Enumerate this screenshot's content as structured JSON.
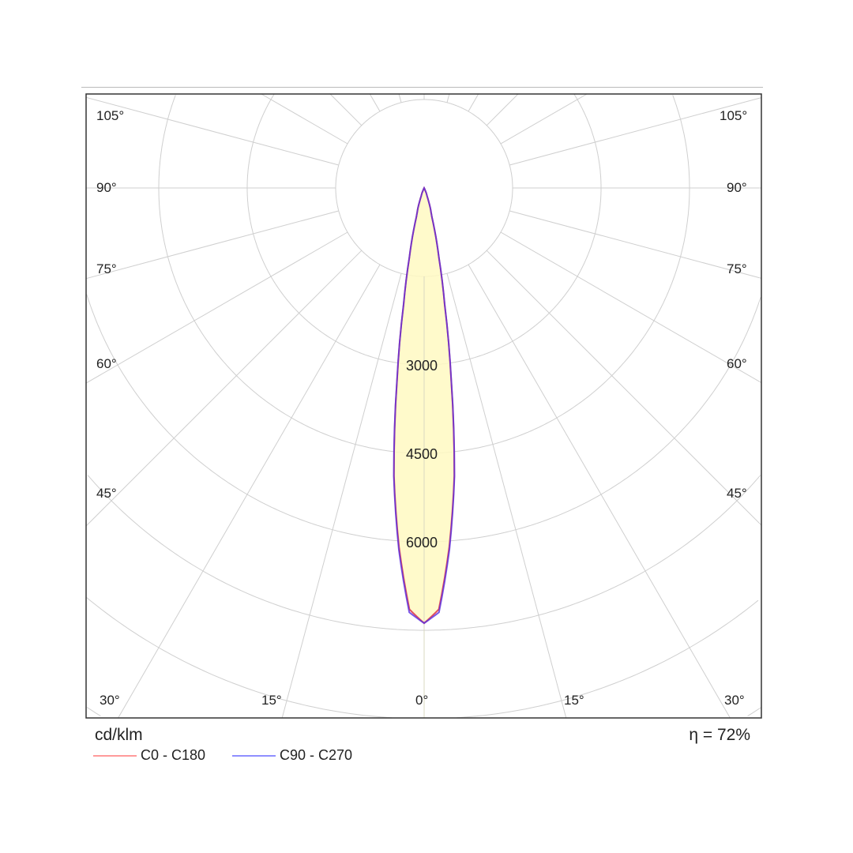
{
  "chart_data": {
    "type": "polar",
    "unit_label": "cd/klm",
    "efficiency_label": "η = 72%",
    "radial_ticks": [
      1500,
      3000,
      4500,
      6000,
      7500
    ],
    "radial_tick_labels": [
      "3000",
      "4500",
      "6000"
    ],
    "angle_labels_left": [
      "105°",
      "90°",
      "75°",
      "60°",
      "45°",
      "30°",
      "15°"
    ],
    "angle_labels_right": [
      "105°",
      "90°",
      "75°",
      "60°",
      "45°",
      "30°",
      "15°"
    ],
    "angle_label_center": "0°",
    "angle_step_deg": 15,
    "grid": true,
    "legend_position": "bottom-left",
    "gamma_deg": [
      0,
      2,
      4,
      6,
      8,
      10,
      12,
      15,
      20,
      25,
      30,
      90
    ],
    "series": [
      {
        "name": "C0 - C180",
        "color": "#ff8a8a",
        "values": [
          7380,
          7150,
          6100,
          4900,
          3300,
          2000,
          1200,
          500,
          150,
          30,
          0,
          0
        ]
      },
      {
        "name": "C90 - C270",
        "color": "#7a7aff",
        "values": [
          7380,
          7200,
          6150,
          4920,
          3320,
          2010,
          1210,
          500,
          150,
          30,
          0,
          0
        ]
      }
    ],
    "fill_color": "#fff9c2"
  }
}
